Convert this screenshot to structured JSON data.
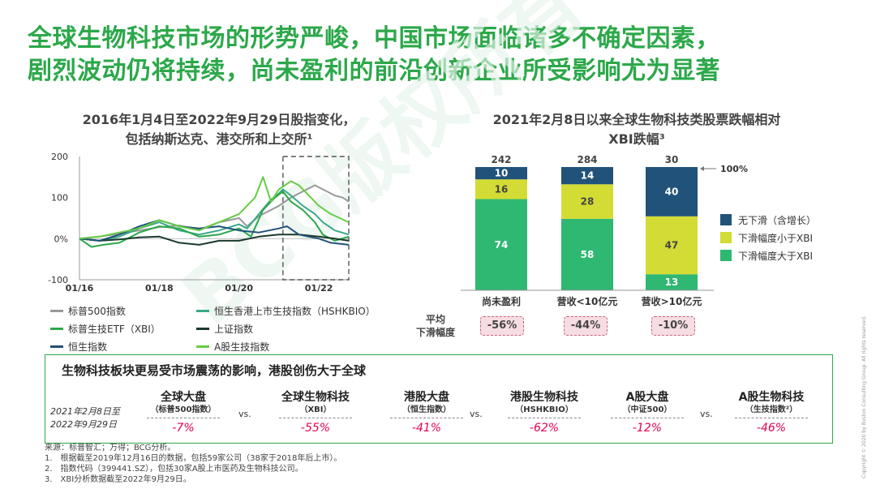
{
  "title": {
    "line1": "全球生物科技市场的形势严峻，中国市场面临诸多不确定因素，",
    "line2": "剧烈波动仍将持续，尚未盈利的前沿创新企业所受影响尤为显著"
  },
  "watermark": "BCG版权所有",
  "left_chart_title": {
    "line1": "2016年1月4日至2022年9月29日股指变化，",
    "line2": "包括纳斯达克、港交所和上交所¹"
  },
  "right_chart_title": {
    "line1": "2021年2月8日以来全球生物科技类股票跌幅相对",
    "line2": "XBI跌幅³"
  },
  "colors": {
    "accent": "#2ca84a",
    "dark_blue": "#21527a",
    "yellow_green": "#d3dc34",
    "green": "#2eb872",
    "gray": "#999999"
  },
  "chart_data": [
    {
      "type": "line",
      "y_ticks": [
        "200",
        "100",
        "0%",
        "-100"
      ],
      "ylim": [
        -100,
        200
      ],
      "x_ticks": [
        "01/16",
        "01/18",
        "01/20",
        "01/22"
      ],
      "x_tick_pos": [
        2016.0,
        2018.0,
        2020.0,
        2022.0
      ],
      "xlim": [
        2016.0,
        2022.75
      ],
      "highlight_window": [
        2021.1,
        2022.75
      ],
      "series": [
        {
          "name": "标普500指数",
          "color": "#999999",
          "x": [
            2016.0,
            2016.5,
            2017.0,
            2017.5,
            2018.0,
            2018.5,
            2019.0,
            2019.5,
            2020.0,
            2020.2,
            2020.5,
            2021.0,
            2021.3,
            2021.6,
            2021.9,
            2022.1,
            2022.4,
            2022.6,
            2022.75
          ],
          "y": [
            0,
            5,
            12,
            20,
            28,
            32,
            22,
            40,
            50,
            30,
            55,
            80,
            100,
            115,
            130,
            120,
            105,
            100,
            90
          ]
        },
        {
          "name": "恒生香港上市生技指数（HSHKBIO）",
          "color": "#3aa88a",
          "x": [
            2016.0,
            2016.5,
            2017.0,
            2017.5,
            2018.0,
            2018.5,
            2019.0,
            2019.5,
            2020.0,
            2020.2,
            2020.5,
            2020.8,
            2021.0,
            2021.1,
            2021.3,
            2021.6,
            2021.9,
            2022.1,
            2022.4,
            2022.75
          ],
          "y": [
            0,
            -5,
            5,
            25,
            40,
            20,
            10,
            20,
            35,
            25,
            60,
            95,
            110,
            120,
            105,
            80,
            60,
            40,
            20,
            10
          ]
        },
        {
          "name": "标普生技ETF（XBI）",
          "color": "#2ca84a",
          "x": [
            2016.0,
            2016.3,
            2016.6,
            2017.0,
            2017.5,
            2018.0,
            2018.5,
            2019.0,
            2019.5,
            2020.0,
            2020.3,
            2020.6,
            2020.9,
            2021.1,
            2021.3,
            2021.6,
            2021.9,
            2022.1,
            2022.4,
            2022.75
          ],
          "y": [
            0,
            -20,
            -15,
            -10,
            15,
            30,
            25,
            5,
            10,
            25,
            5,
            70,
            100,
            115,
            90,
            70,
            40,
            10,
            -5,
            5
          ]
        },
        {
          "name": "上证指数",
          "color": "#1b3a2b",
          "x": [
            2016.0,
            2016.5,
            2017.0,
            2017.5,
            2018.0,
            2018.5,
            2019.0,
            2019.5,
            2020.0,
            2020.5,
            2021.0,
            2021.5,
            2022.0,
            2022.4,
            2022.75
          ],
          "y": [
            0,
            -5,
            -2,
            3,
            5,
            -10,
            -15,
            -5,
            -5,
            5,
            10,
            10,
            5,
            0,
            -5
          ]
        },
        {
          "name": "恒生指数",
          "color": "#21527a",
          "x": [
            2016.0,
            2016.5,
            2017.0,
            2017.5,
            2018.0,
            2018.5,
            2019.0,
            2019.5,
            2020.0,
            2020.5,
            2021.0,
            2021.2,
            2021.5,
            2022.0,
            2022.3,
            2022.75
          ],
          "y": [
            0,
            -5,
            10,
            30,
            45,
            30,
            25,
            30,
            20,
            15,
            25,
            30,
            10,
            0,
            -10,
            -15
          ]
        },
        {
          "name": "A股生技指数",
          "color": "#66cc44",
          "x": [
            2016.0,
            2016.5,
            2017.0,
            2017.5,
            2018.0,
            2018.5,
            2019.0,
            2019.5,
            2020.0,
            2020.4,
            2020.6,
            2020.8,
            2021.0,
            2021.3,
            2021.5,
            2021.8,
            2022.0,
            2022.3,
            2022.75
          ],
          "y": [
            0,
            5,
            15,
            25,
            45,
            30,
            20,
            40,
            60,
            100,
            150,
            90,
            120,
            140,
            130,
            100,
            80,
            60,
            40
          ]
        }
      ]
    },
    {
      "type": "bar",
      "categories": [
        "尚未盈利",
        "营收<10亿元",
        "营收>10亿元"
      ],
      "totals": [
        "242",
        "284",
        "30"
      ],
      "reference_label": "100%",
      "series": [
        {
          "name": "下滑幅度大于XBI",
          "color": "#2eb872",
          "values": [
            74,
            58,
            13
          ]
        },
        {
          "name": "下滑幅度小于XBI",
          "color": "#d3dc34",
          "values": [
            16,
            28,
            47
          ]
        },
        {
          "name": "无下滑（含增长）",
          "color": "#21527a",
          "values": [
            10,
            14,
            40
          ]
        }
      ],
      "avg_decline_label": "平均\n下滑幅度",
      "avg_decline": [
        "-56%",
        "-44%",
        "-10%"
      ]
    }
  ],
  "bottom_box": {
    "title": "生物科技板块更易受市场震荡的影响，港股创伤大于全球",
    "period": "2021年2月8日至\n2022年9月29日",
    "vs_label": "vs.",
    "items": [
      {
        "head": "全球大盘",
        "sub": "（标普500指数）",
        "value": "-7%"
      },
      {
        "head": "全球生物科技",
        "sub": "（XBI）",
        "value": "-55%"
      },
      {
        "head": "港股大盘",
        "sub": "（恒生指数）",
        "value": "-41%"
      },
      {
        "head": "港股生物科技",
        "sub": "（HSHKBIO）",
        "value": "-62%"
      },
      {
        "head": "A股大盘",
        "sub": "（中证500）",
        "value": "-12%"
      },
      {
        "head": "A股生物科技",
        "sub": "（生技指数²）",
        "value": "-46%"
      }
    ]
  },
  "notes": [
    "来源：标普智汇；万得；BCG分析。",
    "1.　根据截至2019年12月16日的数据，包括59家公司（38家于2018年后上市）。",
    "2.　指数代码（399441.SZ），包括30家A股上市医药及生物科技公司。",
    "3.　XBI分析数据截至2022年9月29日。"
  ],
  "copyright": "Copyright © 2020 by Boston Consulting Group. All rights reserved."
}
